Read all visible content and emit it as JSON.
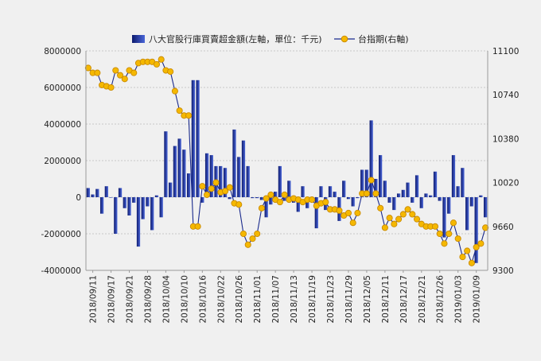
{
  "chart_data": {
    "type": "bar+line",
    "legend": {
      "placement": "top",
      "bar_label": "八大官股行庫買賣超金額(左軸，單位：千元)",
      "line_label": "台指期(右軸)"
    },
    "left_axis": {
      "min": -4000000,
      "max": 8000000,
      "step": 2000000,
      "ticks": [
        "-4000000",
        "-2000000",
        "0",
        "2000000",
        "4000000",
        "6000000",
        "8000000"
      ]
    },
    "right_axis": {
      "min": 9300,
      "max": 11100,
      "step": 360,
      "ticks": [
        "9300",
        "9660",
        "10020",
        "10380",
        "10740",
        "11100"
      ]
    },
    "grid": true,
    "colors": {
      "bar_dark": "#0d1a6e",
      "bar_light": "#4a66d8",
      "line": "#1a2a8c",
      "marker_fill": "#f5b800",
      "marker_edge": "#c98a00",
      "grid": "#c8c8c8"
    },
    "x_labels": [
      "2018/09/11",
      "2018/09/17",
      "2018/09/21",
      "2018/09/28",
      "2018/10/04",
      "2018/10/10",
      "2018/10/16",
      "2018/10/22",
      "2018/10/26",
      "2018/11/01",
      "2018/11/07",
      "2018/11/13",
      "2018/11/19",
      "2018/11/23",
      "2018/11/29",
      "2018/12/05",
      "2018/12/11",
      "2018/12/17",
      "2018/12/21",
      "2018/12/26",
      "2019/01/03",
      "2019/01/09"
    ],
    "label_every": 4,
    "bars": [
      500000,
      150000,
      450000,
      -900000,
      600000,
      0,
      -2000000,
      500000,
      -600000,
      -1000000,
      -300000,
      -2700000,
      -1200000,
      -500000,
      -1800000,
      100000,
      -1100000,
      3600000,
      800000,
      2800000,
      3200000,
      2600000,
      1300000,
      6400000,
      6400000,
      -300000,
      2400000,
      2300000,
      1700000,
      1700000,
      1600000,
      -100000,
      3700000,
      2200000,
      3100000,
      1700000,
      -50000,
      -50000,
      -150000,
      -1100000,
      -400000,
      300000,
      1700000,
      -200000,
      900000,
      -300000,
      -800000,
      600000,
      -600000,
      -200000,
      -1700000,
      600000,
      -700000,
      600000,
      300000,
      -1300000,
      900000,
      -100000,
      -500000,
      -50000,
      1500000,
      1500000,
      4200000,
      1000000,
      2300000,
      900000,
      -300000,
      -700000,
      200000,
      400000,
      800000,
      -300000,
      1200000,
      -600000,
      200000,
      100000,
      1400000,
      -200000,
      -2200000,
      -900000,
      2300000,
      600000,
      1600000,
      -1800000,
      -500000,
      -3600000,
      100000,
      -1100000
    ],
    "line": [
      10960,
      10920,
      10920,
      10820,
      10810,
      10800,
      10940,
      10900,
      10870,
      10940,
      10920,
      11000,
      11010,
      11010,
      11010,
      10990,
      11030,
      10940,
      10930,
      10770,
      10610,
      10570,
      10570,
      9660,
      9660,
      9990,
      9920,
      9970,
      10020,
      9940,
      9950,
      9980,
      9850,
      9840,
      9600,
      9510,
      9560,
      9600,
      9810,
      9890,
      9920,
      9880,
      9860,
      9920,
      9880,
      9890,
      9880,
      9860,
      9880,
      9880,
      9830,
      9850,
      9860,
      9800,
      9800,
      9790,
      9750,
      9770,
      9690,
      9770,
      9930,
      9930,
      10040,
      9930,
      9810,
      9650,
      9730,
      9680,
      9720,
      9760,
      9800,
      9760,
      9720,
      9680,
      9660,
      9660,
      9660,
      9600,
      9520,
      9600,
      9690,
      9560,
      9410,
      9460,
      9360,
      9490,
      9520,
      9650
    ]
  }
}
